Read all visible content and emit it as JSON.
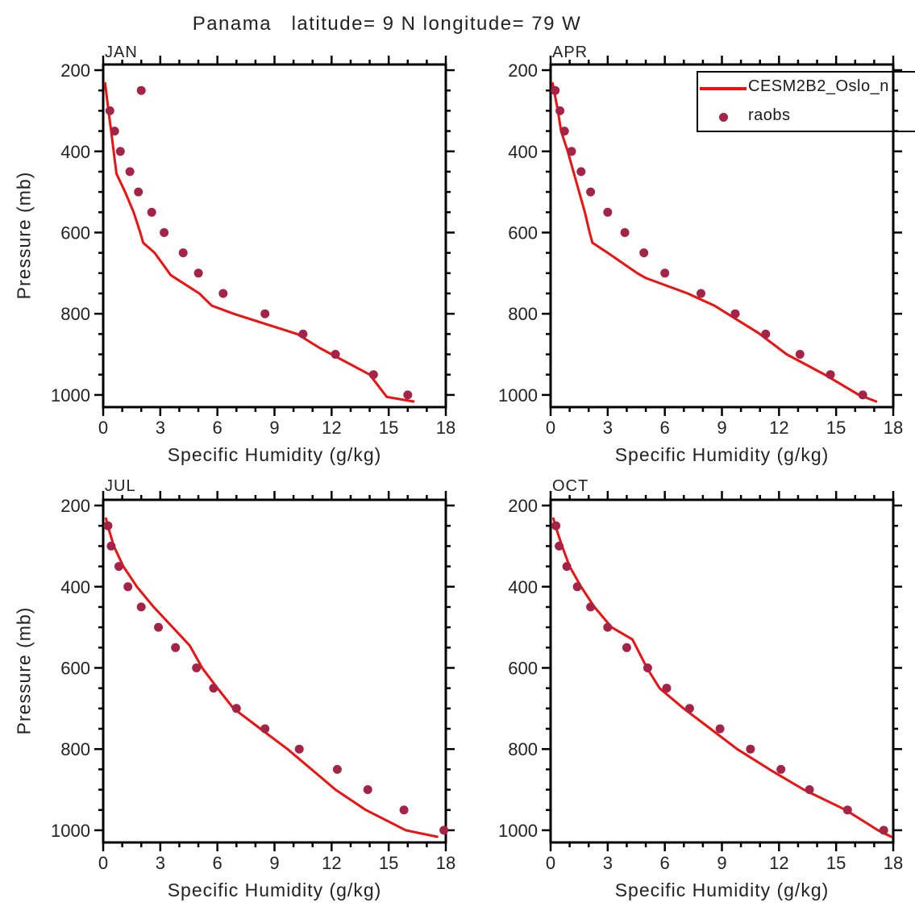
{
  "title": "Panama   latitude= 9 N longitude= 79 W",
  "chart_data": {
    "type": "line",
    "title": "Panama   latitude= 9 N longitude= 79 W",
    "xlabel": "Specific Humidity (g/kg)",
    "ylabel": "Pressure (mb)",
    "xlim": [
      0,
      18
    ],
    "ylim_pressure": [
      1030,
      186
    ],
    "x_major_ticks": [
      0,
      3,
      6,
      9,
      12,
      15,
      18
    ],
    "x_minor_step": 1,
    "y_major_ticks": [
      200,
      400,
      600,
      800,
      1000
    ],
    "y_minor_step": 50,
    "grid": false,
    "line_color": "#f11010",
    "dot_color": "#a52347",
    "axis_color": "#000000",
    "legend": {
      "position": "top-right, clipped at image edge",
      "entries": [
        {
          "label": "CESM2B2_Oslo_n",
          "marker": "line",
          "color": "#f11010"
        },
        {
          "label": "raobs",
          "marker": "dot",
          "color": "#a52347"
        }
      ]
    },
    "panels": [
      {
        "label": "JAN",
        "model_line": [
          [
            0.1,
            232
          ],
          [
            0.15,
            250
          ],
          [
            0.28,
            300
          ],
          [
            0.42,
            350
          ],
          [
            0.55,
            400
          ],
          [
            0.7,
            455
          ],
          [
            1.15,
            500
          ],
          [
            1.6,
            550
          ],
          [
            1.95,
            600
          ],
          [
            2.1,
            625
          ],
          [
            2.7,
            650
          ],
          [
            3.55,
            705
          ],
          [
            5.05,
            750
          ],
          [
            5.7,
            780
          ],
          [
            6.85,
            800
          ],
          [
            10.2,
            850
          ],
          [
            11.4,
            885
          ],
          [
            14.0,
            950
          ],
          [
            14.9,
            1005
          ],
          [
            16.3,
            1016
          ]
        ],
        "raobs": [
          [
            2.0,
            250
          ],
          [
            0.35,
            300
          ],
          [
            0.6,
            350
          ],
          [
            0.9,
            400
          ],
          [
            1.4,
            450
          ],
          [
            1.85,
            500
          ],
          [
            2.55,
            550
          ],
          [
            3.2,
            600
          ],
          [
            4.2,
            650
          ],
          [
            5.0,
            700
          ],
          [
            6.3,
            750
          ],
          [
            8.5,
            800
          ],
          [
            10.5,
            850
          ],
          [
            12.2,
            900
          ],
          [
            14.2,
            950
          ],
          [
            16.0,
            1000
          ]
        ]
      },
      {
        "label": "APR",
        "model_line": [
          [
            0.1,
            232
          ],
          [
            0.18,
            250
          ],
          [
            0.38,
            300
          ],
          [
            0.55,
            350
          ],
          [
            0.9,
            400
          ],
          [
            1.2,
            450
          ],
          [
            1.5,
            500
          ],
          [
            1.8,
            550
          ],
          [
            2.05,
            600
          ],
          [
            2.2,
            625
          ],
          [
            3.0,
            650
          ],
          [
            4.55,
            700
          ],
          [
            5.0,
            712
          ],
          [
            7.2,
            750
          ],
          [
            8.6,
            780
          ],
          [
            10.9,
            847
          ],
          [
            12.4,
            900
          ],
          [
            14.4,
            950
          ],
          [
            16.2,
            1000
          ],
          [
            17.1,
            1016
          ]
        ],
        "raobs": [
          [
            0.24,
            250
          ],
          [
            0.49,
            300
          ],
          [
            0.73,
            350
          ],
          [
            1.1,
            400
          ],
          [
            1.6,
            450
          ],
          [
            2.1,
            500
          ],
          [
            3.0,
            550
          ],
          [
            3.9,
            600
          ],
          [
            4.9,
            650
          ],
          [
            6.0,
            700
          ],
          [
            7.9,
            750
          ],
          [
            9.7,
            800
          ],
          [
            11.3,
            850
          ],
          [
            13.1,
            900
          ],
          [
            14.7,
            950
          ],
          [
            16.4,
            1000
          ]
        ]
      },
      {
        "label": "JUL",
        "model_line": [
          [
            0.15,
            232
          ],
          [
            0.24,
            250
          ],
          [
            0.56,
            300
          ],
          [
            1.06,
            350
          ],
          [
            1.77,
            400
          ],
          [
            2.65,
            450
          ],
          [
            3.65,
            500
          ],
          [
            4.55,
            545
          ],
          [
            5.2,
            600
          ],
          [
            6.0,
            650
          ],
          [
            6.85,
            700
          ],
          [
            8.26,
            750
          ],
          [
            9.68,
            800
          ],
          [
            10.95,
            850
          ],
          [
            12.2,
            900
          ],
          [
            13.8,
            950
          ],
          [
            15.9,
            1000
          ],
          [
            17.55,
            1016
          ]
        ],
        "raobs": [
          [
            0.25,
            250
          ],
          [
            0.42,
            300
          ],
          [
            0.82,
            350
          ],
          [
            1.3,
            400
          ],
          [
            2.0,
            450
          ],
          [
            2.9,
            500
          ],
          [
            3.8,
            550
          ],
          [
            4.9,
            600
          ],
          [
            5.8,
            650
          ],
          [
            7.0,
            700
          ],
          [
            8.5,
            750
          ],
          [
            10.3,
            800
          ],
          [
            12.3,
            850
          ],
          [
            13.9,
            900
          ],
          [
            15.8,
            950
          ],
          [
            17.9,
            1000
          ]
        ]
      },
      {
        "label": "OCT",
        "model_line": [
          [
            0.15,
            232
          ],
          [
            0.25,
            250
          ],
          [
            0.6,
            300
          ],
          [
            1.0,
            350
          ],
          [
            1.6,
            400
          ],
          [
            2.3,
            450
          ],
          [
            3.2,
            500
          ],
          [
            4.3,
            530
          ],
          [
            4.52,
            550
          ],
          [
            5.06,
            600
          ],
          [
            5.72,
            650
          ],
          [
            6.99,
            700
          ],
          [
            8.4,
            750
          ],
          [
            9.8,
            800
          ],
          [
            11.5,
            850
          ],
          [
            13.3,
            900
          ],
          [
            15.5,
            950
          ],
          [
            17.2,
            1000
          ],
          [
            17.9,
            1016
          ]
        ],
        "raobs": [
          [
            0.28,
            250
          ],
          [
            0.45,
            300
          ],
          [
            0.85,
            350
          ],
          [
            1.4,
            400
          ],
          [
            2.1,
            450
          ],
          [
            3.0,
            500
          ],
          [
            4.0,
            550
          ],
          [
            5.1,
            600
          ],
          [
            6.1,
            650
          ],
          [
            7.3,
            700
          ],
          [
            8.9,
            750
          ],
          [
            10.5,
            800
          ],
          [
            12.1,
            850
          ],
          [
            13.6,
            900
          ],
          [
            15.6,
            950
          ],
          [
            17.5,
            1000
          ]
        ]
      }
    ]
  }
}
